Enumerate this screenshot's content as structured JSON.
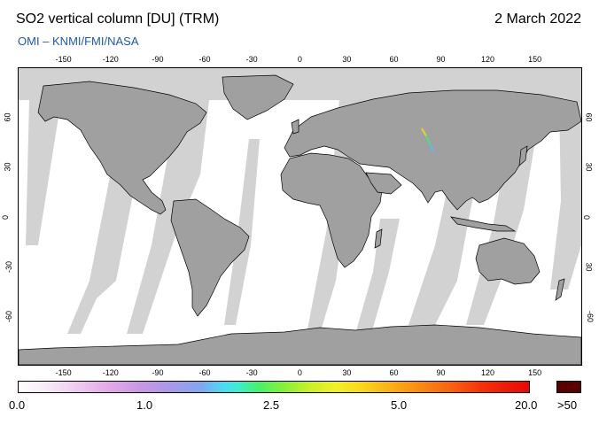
{
  "header": {
    "title": "SO2 vertical column [DU] (TRM)",
    "date": "2 March 2022",
    "credit": "OMI  –  KNMI/FMI/NASA"
  },
  "map": {
    "projection": "equirectangular",
    "lon_ticks": [
      "-150",
      "-120",
      "-90",
      "-60",
      "-30",
      "0",
      "30",
      "60",
      "90",
      "120",
      "150"
    ],
    "lat_ticks_left": [
      "60",
      "30",
      "0",
      "-30",
      "-60"
    ],
    "lat_ticks_right": [
      "60",
      "30",
      "0",
      "30",
      "-60"
    ],
    "colors": {
      "land": "#a0a0a0",
      "no_data": "#d2d2d2",
      "background": "#ffffff",
      "coastline": "#000000"
    }
  },
  "colorbar": {
    "labels": [
      "0.0",
      "1.0",
      "2.5",
      "5.0",
      "20.0",
      ">50"
    ],
    "overflow_color": "#5a0000"
  }
}
